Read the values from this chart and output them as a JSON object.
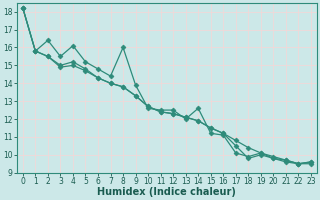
{
  "xlabel": "Humidex (Indice chaleur)",
  "x_values": [
    0,
    1,
    2,
    3,
    4,
    5,
    6,
    7,
    8,
    9,
    10,
    11,
    12,
    13,
    14,
    15,
    16,
    17,
    18,
    19,
    20,
    21,
    22,
    23
  ],
  "series": [
    [
      18.2,
      15.8,
      16.4,
      15.5,
      16.1,
      15.2,
      14.8,
      14.4,
      16.0,
      13.9,
      12.6,
      12.5,
      12.5,
      12.0,
      12.6,
      11.2,
      11.1,
      10.1,
      9.9,
      10.1,
      9.8,
      9.7,
      9.5,
      9.6
    ],
    [
      18.2,
      15.8,
      15.5,
      15.0,
      15.2,
      14.8,
      14.3,
      14.0,
      13.8,
      13.3,
      12.7,
      12.4,
      12.3,
      12.1,
      11.9,
      11.5,
      11.2,
      10.8,
      10.4,
      10.1,
      9.9,
      9.7,
      9.5,
      9.5
    ],
    [
      18.2,
      15.8,
      15.5,
      14.9,
      15.0,
      14.7,
      14.3,
      14.0,
      13.8,
      13.3,
      12.7,
      12.4,
      12.3,
      12.1,
      11.9,
      11.5,
      11.2,
      10.5,
      9.8,
      10.0,
      9.8,
      9.6,
      9.5,
      9.6
    ]
  ],
  "line_color": "#2e8b7a",
  "marker": "D",
  "markersize": 2.5,
  "bg_color": "#cce8e8",
  "grid_color": "#f0d8d8",
  "ylim": [
    9,
    18.5
  ],
  "yticks": [
    9,
    10,
    11,
    12,
    13,
    14,
    15,
    16,
    17,
    18
  ],
  "xlim": [
    -0.5,
    23.5
  ],
  "xticks": [
    0,
    1,
    2,
    3,
    4,
    5,
    6,
    7,
    8,
    9,
    10,
    11,
    12,
    13,
    14,
    15,
    16,
    17,
    18,
    19,
    20,
    21,
    22,
    23
  ],
  "xlabel_fontsize": 7,
  "tick_fontsize": 5.5,
  "linewidth": 0.9
}
